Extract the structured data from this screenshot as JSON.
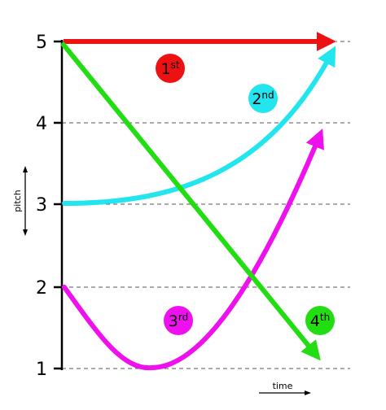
{
  "y_axis": {
    "caption": "pitch",
    "ticks": [
      "1",
      "2",
      "3",
      "4",
      "5"
    ]
  },
  "x_axis": {
    "caption": "time"
  },
  "contours": [
    {
      "id": "first",
      "badge_number": "1",
      "badge_suffix": "st",
      "color": "#ee1111",
      "shape": "level at pitch 5"
    },
    {
      "id": "second",
      "badge_number": "2",
      "badge_suffix": "nd",
      "color": "#22e5ee",
      "shape": "rising curve from pitch 3 to 5"
    },
    {
      "id": "third",
      "badge_number": "3",
      "badge_suffix": "rd",
      "color": "#ee11ee",
      "shape": "dip from pitch 2 to 1 then rise to 4"
    },
    {
      "id": "fourth",
      "badge_number": "4",
      "badge_suffix": "th",
      "color": "#22dd11",
      "shape": "falling line from pitch 5 to 1"
    }
  ],
  "colors": {
    "axis": "#000000",
    "gridline": "#555555",
    "background": "#ffffff"
  }
}
